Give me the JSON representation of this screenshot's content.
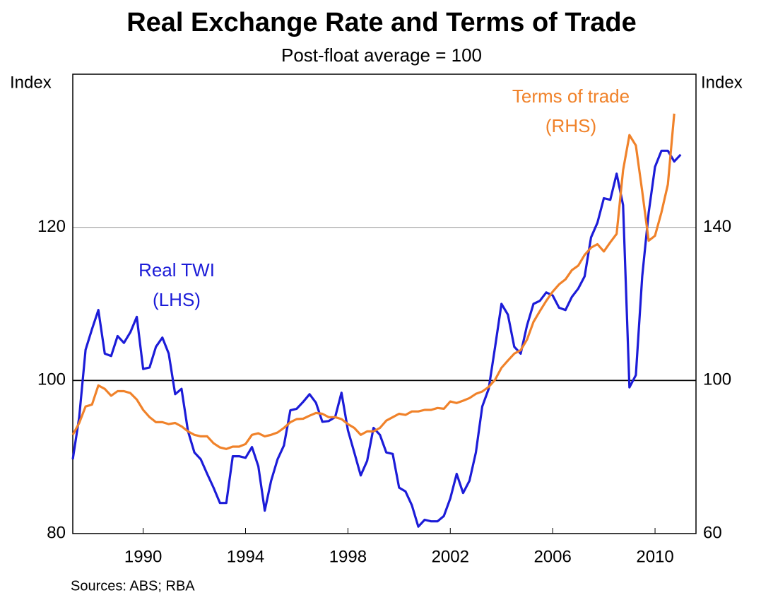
{
  "chart_data": {
    "type": "line",
    "title": "Real Exchange Rate and Terms of Trade",
    "subtitle": "Post-float average = 100",
    "y_label": "Index",
    "y2_label": "Index",
    "source": "Sources: ABS; RBA",
    "annotations": [
      "Real TWI",
      "(LHS)",
      "Terms of trade",
      "(RHS)"
    ],
    "x": [
      1987.25,
      1987.5,
      1987.75,
      1988,
      1988.25,
      1988.5,
      1988.75,
      1989,
      1989.25,
      1989.5,
      1989.75,
      1990,
      1990.25,
      1990.5,
      1990.75,
      1991,
      1991.25,
      1991.5,
      1991.75,
      1992,
      1992.25,
      1992.5,
      1992.75,
      1993,
      1993.25,
      1993.5,
      1993.75,
      1994,
      1994.25,
      1994.5,
      1994.75,
      1995,
      1995.25,
      1995.5,
      1995.75,
      1996,
      1996.25,
      1996.5,
      1996.75,
      1997,
      1997.25,
      1997.5,
      1997.75,
      1998,
      1998.25,
      1998.5,
      1998.75,
      1999,
      1999.25,
      1999.5,
      1999.75,
      2000,
      2000.25,
      2000.5,
      2000.75,
      2001,
      2001.25,
      2001.5,
      2001.75,
      2002,
      2002.25,
      2002.5,
      2002.75,
      2003,
      2003.25,
      2003.5,
      2003.75,
      2004,
      2004.25,
      2004.5,
      2004.75,
      2005,
      2005.25,
      2005.5,
      2005.75,
      2006,
      2006.25,
      2006.5,
      2006.75,
      2007,
      2007.25,
      2007.5,
      2007.75,
      2008,
      2008.25,
      2008.5,
      2008.75,
      2009,
      2009.25,
      2009.5,
      2009.75,
      2010,
      2010.25,
      2010.5,
      2010.75,
      2011
    ],
    "series": [
      {
        "name": "Real TWI",
        "color": "#1c1cd8",
        "axis": "y",
        "values": [
          89.7,
          95.2,
          104,
          106.7,
          109.2,
          103.5,
          103.2,
          105.8,
          104.9,
          106.3,
          108.3,
          101.5,
          101.7,
          104.4,
          105.6,
          103.5,
          98.2,
          98.9,
          93.4,
          90.6,
          89.7,
          87.8,
          86,
          84,
          84,
          90.1,
          90.1,
          89.9,
          91.3,
          88.8,
          83,
          86.9,
          89.7,
          91.5,
          96.1,
          96.3,
          97.2,
          98.2,
          97.1,
          94.6,
          94.7,
          95.2,
          98.4,
          93.5,
          90.6,
          87.6,
          89.5,
          93.8,
          92.9,
          90.6,
          90.4,
          86,
          85.5,
          83.7,
          80.9,
          81.8,
          81.6,
          81.6,
          82.3,
          84.6,
          87.8,
          85.3,
          86.9,
          90.6,
          96.6,
          98.9,
          104.4,
          110,
          108.6,
          104.4,
          103.5,
          107.2,
          110,
          110.4,
          111.5,
          111.1,
          109.5,
          109.2,
          110.9,
          112,
          113.6,
          118.7,
          120.6,
          123.8,
          123.6,
          127,
          122.9,
          99.1,
          100.7,
          113.6,
          121.9,
          127.9,
          130,
          130,
          128.6,
          129.5
        ]
      },
      {
        "name": "Terms of trade",
        "color": "#f0822a",
        "axis": "y2",
        "values": [
          85.8,
          88.9,
          93.2,
          93.7,
          98.7,
          97.8,
          96,
          97.2,
          97.2,
          96.7,
          95,
          92.3,
          90.4,
          89.1,
          89.1,
          88.6,
          88.9,
          88,
          86.7,
          85.8,
          85.4,
          85.4,
          83.6,
          82.5,
          82.1,
          82.7,
          82.7,
          83.4,
          85.8,
          86.2,
          85.4,
          85.8,
          86.4,
          87.6,
          89.1,
          89.9,
          90,
          90.8,
          91.5,
          91.3,
          90.4,
          90.4,
          89.9,
          88.6,
          87.6,
          85.8,
          86.7,
          86.7,
          87.6,
          89.5,
          90.4,
          91.3,
          91,
          91.9,
          91.9,
          92.3,
          92.3,
          92.8,
          92.6,
          94.5,
          94.1,
          94.7,
          95.4,
          96.5,
          97.1,
          98.3,
          100.2,
          103.3,
          105.2,
          107,
          107.9,
          110.7,
          115.3,
          118.1,
          120.8,
          123.2,
          125.1,
          126.4,
          128.8,
          130,
          132.8,
          134.7,
          135.6,
          133.7,
          136.1,
          138.3,
          154.9,
          164.1,
          161.4,
          149.4,
          136.5,
          137.8,
          143.9,
          151.2,
          169.7,
          null
        ]
      }
    ],
    "xlim": [
      1987.25,
      2011.6
    ],
    "xticks": [
      1990,
      1994,
      1998,
      2002,
      2006,
      2010
    ],
    "ylim": [
      80,
      140
    ],
    "yticks": [
      80,
      100,
      120
    ],
    "y2lim": [
      60,
      180
    ],
    "y2ticks": [
      60,
      100,
      140
    ],
    "grid": true,
    "baseline": 100,
    "grid_color": "#a0a0a0",
    "baseline_color": "#000000"
  }
}
